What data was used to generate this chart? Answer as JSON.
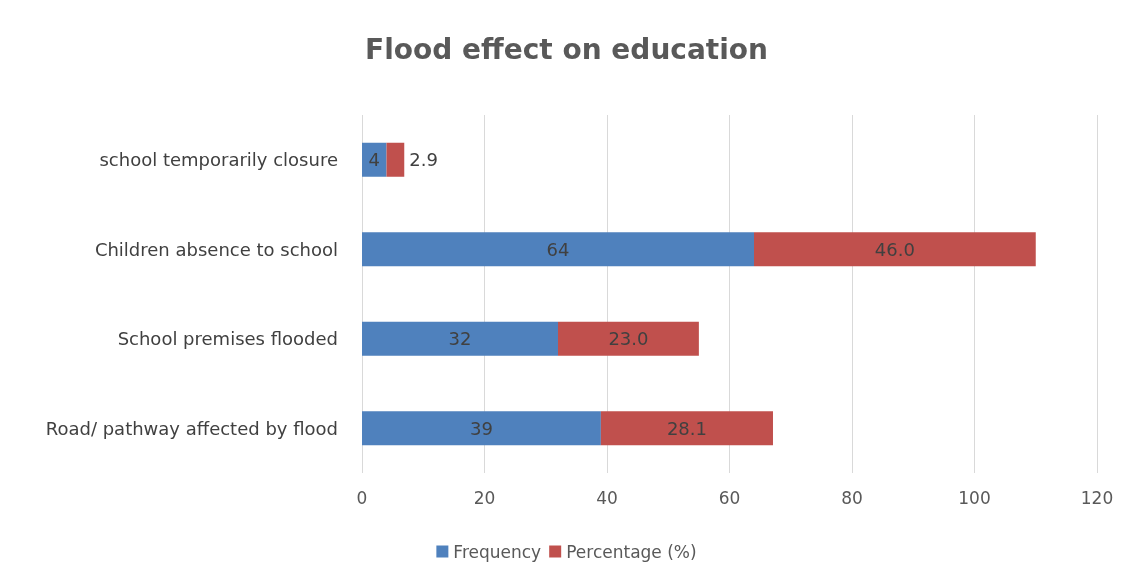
{
  "chart_data": {
    "type": "bar",
    "title": "Flood effect on education",
    "orientation": "horizontal",
    "stacked": true,
    "categories": [
      "school temporarily closure",
      "Children absence to school",
      "School premises flooded",
      "Road/ pathway affected by flood"
    ],
    "series": [
      {
        "name": "Frequency",
        "color": "#4f81bd",
        "values": [
          4,
          64,
          32,
          39
        ],
        "value_labels": [
          "4",
          "64",
          "32",
          "39"
        ]
      },
      {
        "name": "Percentage (%)",
        "color": "#c0504d",
        "values": [
          2.9,
          46.0,
          23.0,
          28.1
        ],
        "value_labels": [
          "2.9",
          "46.0",
          "23.0",
          "28.1"
        ]
      }
    ],
    "xlim": [
      0,
      120
    ],
    "xticks": [
      0,
      20,
      40,
      60,
      80,
      100,
      120
    ],
    "grid": "x",
    "legend": "bottom"
  }
}
